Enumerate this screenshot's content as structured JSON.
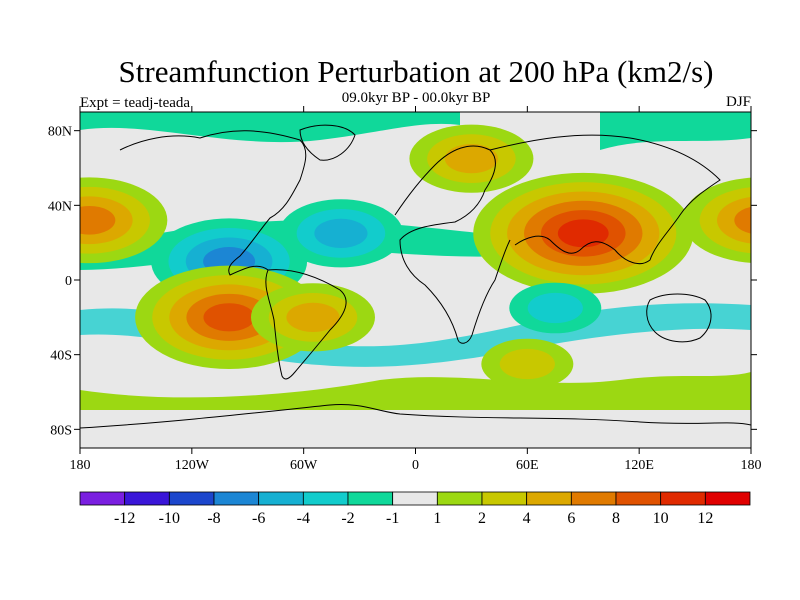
{
  "title": "Streamfunction Perturbation at 200 hPa (km2/s)",
  "subtitle_left": "Expt = teadj-teada",
  "subtitle_center": "09.0kyr BP - 00.0kyr BP",
  "subtitle_right": "DJF",
  "lon_ticks": [
    "180",
    "120W",
    "60W",
    "0",
    "60E",
    "120E",
    "180"
  ],
  "lat_ticks": [
    "80N",
    "40N",
    "0",
    "40S",
    "80S"
  ],
  "colorbar": {
    "labels": [
      "-12",
      "-10",
      "-8",
      "-6",
      "-4",
      "-2",
      "-1",
      "1",
      "2",
      "4",
      "6",
      "8",
      "10",
      "12"
    ],
    "colors": [
      "#7a1fe0",
      "#3a16d8",
      "#1c46cc",
      "#1c86d4",
      "#16b0d2",
      "#12cccc",
      "#10d89a",
      "#e8e8e8",
      "#9cd812",
      "#c8c800",
      "#dca800",
      "#e07a00",
      "#e05200",
      "#e02a00",
      "#e00000"
    ]
  },
  "fields": [
    {
      "name": "caribbean-low",
      "lon": -100,
      "lat": 10,
      "level": -6,
      "colors": [
        "#10d89a",
        "#12cccc",
        "#16b0d2",
        "#1c86d4"
      ]
    },
    {
      "name": "south-pacific-high",
      "lon": -100,
      "lat": -20,
      "level": 8,
      "colors": [
        "#9cd812",
        "#c8c800",
        "#dca800",
        "#e07a00",
        "#e05200"
      ]
    },
    {
      "name": "south-america-high",
      "lon": -55,
      "lat": -20,
      "level": 4,
      "colors": [
        "#9cd812",
        "#c8c800",
        "#dca800"
      ]
    },
    {
      "name": "tibet-high",
      "lon": 90,
      "lat": 25,
      "level": 10,
      "colors": [
        "#9cd812",
        "#c8c800",
        "#dca800",
        "#e07a00",
        "#e05200",
        "#e02a00"
      ]
    },
    {
      "name": "europe-high",
      "lon": 30,
      "lat": 65,
      "level": 4,
      "colors": [
        "#9cd812",
        "#c8c800",
        "#dca800"
      ]
    },
    {
      "name": "north-pacific-high",
      "lon": -175,
      "lat": 32,
      "level": 6,
      "colors": [
        "#9cd812",
        "#c8c800",
        "#dca800",
        "#e07a00"
      ]
    },
    {
      "name": "atlantic-low",
      "lon": -40,
      "lat": 25,
      "level": -4,
      "colors": [
        "#10d89a",
        "#12cccc",
        "#16b0d2"
      ]
    },
    {
      "name": "indian-ocean-low",
      "lon": 75,
      "lat": -15,
      "level": -2,
      "colors": [
        "#10d89a",
        "#12cccc"
      ]
    },
    {
      "name": "south-indian-high",
      "lon": 60,
      "lat": -45,
      "level": 2,
      "colors": [
        "#9cd812",
        "#c8c800"
      ]
    }
  ]
}
